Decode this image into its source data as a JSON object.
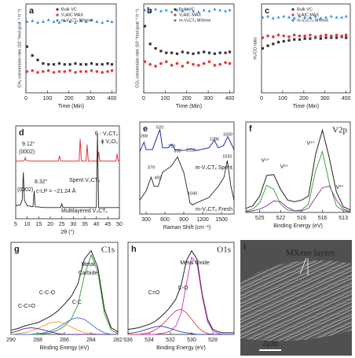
{
  "chart_data": [
    {
      "label": "a",
      "type": "scatter",
      "xlabel": "Time (Min)",
      "ylabel": "CH₄ conversion rate (10⁻³mol gcat⁻¹ h⁻¹)",
      "xlim": [
        0,
        420
      ],
      "ylim": [
        0,
        1
      ],
      "xticks": [
        0,
        100,
        200,
        300,
        400
      ],
      "x": [
        5,
        30,
        55,
        80,
        105,
        130,
        155,
        180,
        205,
        230,
        255,
        280,
        305,
        330,
        355,
        380,
        400
      ],
      "series": [
        {
          "name": "Bulk VC",
          "color": "#333333",
          "marker": "square",
          "values": [
            0.52,
            0.42,
            0.37,
            0.33,
            0.32,
            0.32,
            0.33,
            0.32,
            0.32,
            0.33,
            0.32,
            0.32,
            0.33,
            0.32,
            0.32,
            0.33,
            0.32
          ]
        },
        {
          "name": "V₂AlC MAX",
          "color": "#e03a3a",
          "marker": "circle",
          "values": [
            0.24,
            0.25,
            0.23,
            0.24,
            0.25,
            0.23,
            0.24,
            0.24,
            0.25,
            0.23,
            0.24,
            0.24,
            0.25,
            0.24,
            0.23,
            0.24,
            0.25
          ]
        },
        {
          "name": "m-V₂CTₓ MXene",
          "color": "#3a8fe0",
          "marker": "triangle",
          "values": [
            0.8,
            0.81,
            0.79,
            0.8,
            0.82,
            0.8,
            0.79,
            0.81,
            0.8,
            0.79,
            0.81,
            0.8,
            0.82,
            0.8,
            0.79,
            0.81,
            0.8
          ]
        }
      ]
    },
    {
      "label": "b",
      "type": "scatter",
      "xlabel": "Time (Min)",
      "ylabel": "CO₂ conversion rate (10⁻³mol gcat⁻¹ h⁻¹)",
      "xlim": [
        0,
        420
      ],
      "ylim": [
        0,
        1
      ],
      "xticks": [
        0,
        100,
        200,
        300,
        400
      ],
      "x": [
        5,
        30,
        55,
        80,
        105,
        130,
        155,
        180,
        205,
        230,
        255,
        280,
        305,
        330,
        355,
        380,
        400
      ],
      "series": [
        {
          "name": "Bulk VC",
          "color": "#333333",
          "marker": "square",
          "values": [
            0.75,
            0.55,
            0.5,
            0.47,
            0.45,
            0.45,
            0.44,
            0.46,
            0.45,
            0.44,
            0.45,
            0.46,
            0.45,
            0.44,
            0.45,
            0.45,
            0.46
          ]
        },
        {
          "name": "V₂AlC MAX",
          "color": "#e03a3a",
          "marker": "circle",
          "values": [
            0.35,
            0.32,
            0.3,
            0.33,
            0.35,
            0.31,
            0.33,
            0.3,
            0.34,
            0.32,
            0.31,
            0.33,
            0.35,
            0.31,
            0.32,
            0.34,
            0.33
          ]
        },
        {
          "name": "m-V₂CTₓ MXene",
          "color": "#3a8fe0",
          "marker": "triangle",
          "values": [
            0.93,
            0.92,
            0.94,
            0.92,
            0.93,
            0.91,
            0.93,
            0.92,
            0.94,
            0.92,
            0.91,
            0.93,
            0.92,
            0.94,
            0.93,
            0.92,
            0.93
          ]
        }
      ]
    },
    {
      "label": "c",
      "type": "scatter",
      "xlabel": "Time (Min)",
      "ylabel": "H₂/CO ratio",
      "xlim": [
        0,
        420
      ],
      "ylim": [
        0,
        1
      ],
      "xticks": [
        0,
        100,
        200,
        300,
        400
      ],
      "x": [
        5,
        30,
        55,
        80,
        105,
        130,
        155,
        180,
        205,
        230,
        255,
        280,
        305,
        330,
        355,
        380,
        400
      ],
      "series": [
        {
          "name": "Bulk VC",
          "color": "#333333",
          "marker": "square",
          "values": [
            0.5,
            0.53,
            0.55,
            0.57,
            0.58,
            0.59,
            0.6,
            0.6,
            0.61,
            0.61,
            0.62,
            0.61,
            0.62,
            0.62,
            0.62,
            0.63,
            0.62
          ]
        },
        {
          "name": "V₂AlC MAX",
          "color": "#e03a3a",
          "marker": "circle",
          "values": [
            0.62,
            0.64,
            0.63,
            0.65,
            0.64,
            0.63,
            0.65,
            0.64,
            0.64,
            0.65,
            0.63,
            0.64,
            0.65,
            0.64,
            0.65,
            0.64,
            0.65
          ]
        },
        {
          "name": "m-V₂CTₓ MXene",
          "color": "#3a8fe0",
          "marker": "triangle",
          "values": [
            0.85,
            0.86,
            0.84,
            0.85,
            0.86,
            0.85,
            0.84,
            0.86,
            0.85,
            0.85,
            0.86,
            0.84,
            0.85,
            0.86,
            0.85,
            0.85,
            0.86
          ]
        }
      ]
    },
    {
      "label": "d",
      "type": "line",
      "xlabel": "2θ (°)",
      "xlim": [
        5,
        50
      ],
      "ylim": [
        0,
        1
      ],
      "xticks": [
        5,
        10,
        15,
        20,
        25,
        30,
        35,
        40,
        45,
        50
      ],
      "series": [
        {
          "color": "#e0383a",
          "x": [
            5,
            8,
            8.8,
            9.12,
            9.5,
            11,
            15,
            20,
            23.5,
            24,
            24.5,
            28,
            32.5,
            33,
            33.5,
            35.5,
            36,
            36.5,
            40.5,
            41,
            41.5,
            45,
            48.5,
            49,
            49.5,
            50
          ],
          "values": [
            0.62,
            0.62,
            0.63,
            0.66,
            0.63,
            0.62,
            0.62,
            0.62,
            0.62,
            0.68,
            0.62,
            0.62,
            0.62,
            0.86,
            0.62,
            0.62,
            0.8,
            0.62,
            0.62,
            0.72,
            0.62,
            0.62,
            0.62,
            0.7,
            0.62,
            0.62
          ]
        },
        {
          "color": "#222222",
          "x": [
            5,
            7,
            7.8,
            8.32,
            8.8,
            10,
            12.5,
            13,
            13.5,
            18,
            24.5,
            25,
            25.5,
            35,
            40,
            40.5,
            41,
            45,
            50
          ],
          "values": [
            0.14,
            0.15,
            0.2,
            0.5,
            0.2,
            0.14,
            0.13,
            0.3,
            0.13,
            0.12,
            0.12,
            0.16,
            0.12,
            0.12,
            0.12,
            0.92,
            0.12,
            0.12,
            0.12
          ]
        }
      ],
      "annotations": [
        {
          "text": "θ - V₂CTₓ",
          "color": "#222222"
        },
        {
          "text": "ϕ  V₂O₃",
          "color": "#222222"
        },
        {
          "text": "9.12°",
          "color": "#222222"
        },
        {
          "text": "(0002)",
          "color": "#222222"
        },
        {
          "text": "Spent V₂CTₓ",
          "color": "#e0383a"
        },
        {
          "text": "8.32°",
          "color": "#222222"
        },
        {
          "text": "(0002)",
          "color": "#222222"
        },
        {
          "text": "c-LP = ~21.24 Å",
          "color": "#222222"
        },
        {
          "text": "Multilayered V₂CTₓ",
          "color": "#1f4fc8"
        }
      ]
    },
    {
      "label": "e",
      "type": "line",
      "xlabel": "Raman Shift (cm⁻¹)",
      "xlim": [
        200,
        1700
      ],
      "ylim": [
        0,
        1
      ],
      "xticks": [
        300,
        600,
        900,
        1200,
        1500
      ],
      "series": [
        {
          "color": "#1f2fa8",
          "x": [
            200,
            268,
            300,
            400,
            520,
            560,
            650,
            710,
            760,
            900,
            1010,
            1100,
            1300,
            1386,
            1450,
            1530,
            1600,
            1700
          ],
          "values": [
            0.68,
            0.78,
            0.7,
            0.7,
            0.92,
            0.72,
            0.72,
            0.76,
            0.7,
            0.69,
            0.71,
            0.69,
            0.72,
            0.8,
            0.72,
            0.74,
            0.84,
            0.7
          ],
          "peak_labels": [
            268,
            520,
            710,
            1010,
            1386,
            1600
          ]
        },
        {
          "color": "#222222",
          "x": [
            200,
            300,
            379,
            430,
            492,
            560,
            700,
            800,
            900,
            1000,
            1040,
            1100,
            1300,
            1450,
            1540,
            1592,
            1650,
            1700
          ],
          "values": [
            0.15,
            0.25,
            0.4,
            0.3,
            0.3,
            0.45,
            0.52,
            0.62,
            0.45,
            0.12,
            0.1,
            0.12,
            0.18,
            0.3,
            0.4,
            0.58,
            0.3,
            0.15
          ],
          "peak_labels": [
            379,
            492,
            800,
            1040,
            1592
          ]
        }
      ],
      "annotations": [
        {
          "text": "m-V₂CTₓ Spent",
          "color": "#1f2fa8"
        },
        {
          "text": "m-V₂CTₓ Fresh",
          "color": "#222222"
        }
      ]
    },
    {
      "label": "f",
      "type": "line",
      "xlabel": "Binding Energy (eV)",
      "xlim": [
        527,
        512
      ],
      "ylim": [
        0,
        1.1
      ],
      "xticks": [
        525,
        522,
        519,
        516,
        513
      ],
      "x": [
        527,
        526,
        525,
        524,
        523,
        522,
        521,
        520,
        519,
        518,
        517,
        516,
        515,
        514,
        513,
        512
      ],
      "series": [
        {
          "color": "#222222",
          "values": [
            0.05,
            0.08,
            0.2,
            0.45,
            0.46,
            0.28,
            0.15,
            0.13,
            0.15,
            0.2,
            0.7,
            1.0,
            0.66,
            0.25,
            0.07,
            0.03
          ]
        },
        {
          "color": "#2a9a2a",
          "values": [
            0.02,
            0.04,
            0.12,
            0.33,
            0.28,
            0.1,
            0.03,
            0.02,
            0.03,
            0.1,
            0.5,
            0.74,
            0.35,
            0.08,
            0.02,
            0.01
          ]
        },
        {
          "color": "#8a2aa8",
          "values": [
            0.01,
            0.02,
            0.04,
            0.08,
            0.14,
            0.13,
            0.06,
            0.02,
            0.02,
            0.05,
            0.18,
            0.3,
            0.32,
            0.15,
            0.04,
            0.01
          ]
        }
      ],
      "annotations": [
        {
          "text": "V2p",
          "color": "#222222"
        },
        {
          "text": "V⁴⁺",
          "color": "#2a9a2a"
        },
        {
          "text": "V³⁺",
          "color": "#8a2aa8"
        },
        {
          "text": "V⁴⁺",
          "color": "#2a9a2a"
        },
        {
          "text": "V³⁺",
          "color": "#8a2aa8"
        }
      ]
    },
    {
      "label": "g",
      "type": "line",
      "xlabel": "Binding Energy (eV)",
      "xlim": [
        290,
        282
      ],
      "ylim": [
        0,
        1.1
      ],
      "xticks": [
        290,
        288,
        286,
        284,
        282
      ],
      "x": [
        290,
        289.5,
        289,
        288.5,
        288,
        287.5,
        287,
        286.5,
        286,
        285.5,
        285,
        284.5,
        284,
        283.5,
        283,
        282.5,
        282
      ],
      "series": [
        {
          "color": "#222222",
          "values": [
            0.05,
            0.07,
            0.1,
            0.12,
            0.14,
            0.18,
            0.22,
            0.28,
            0.36,
            0.45,
            0.6,
            0.9,
            1.0,
            0.8,
            0.3,
            0.08,
            0.03
          ]
        },
        {
          "color": "#2a9a2a",
          "values": [
            0,
            0,
            0,
            0,
            0,
            0.01,
            0.02,
            0.05,
            0.1,
            0.18,
            0.35,
            0.7,
            0.95,
            0.75,
            0.25,
            0.05,
            0.01
          ]
        },
        {
          "color": "#3a6fe0",
          "values": [
            0,
            0,
            0,
            0,
            0.01,
            0.02,
            0.04,
            0.08,
            0.13,
            0.18,
            0.2,
            0.18,
            0.12,
            0.06,
            0.02,
            0,
            0
          ]
        },
        {
          "color": "#e8a020",
          "values": [
            0,
            0.01,
            0.02,
            0.04,
            0.07,
            0.11,
            0.14,
            0.15,
            0.13,
            0.09,
            0.05,
            0.02,
            0.01,
            0,
            0,
            0,
            0
          ]
        },
        {
          "color": "#5a2a9a",
          "values": [
            0.02,
            0.04,
            0.07,
            0.08,
            0.07,
            0.05,
            0.03,
            0.01,
            0,
            0,
            0,
            0,
            0,
            0,
            0,
            0,
            0
          ]
        }
      ],
      "annotations": [
        {
          "text": "C1s",
          "color": "#222222"
        },
        {
          "text": "Metal",
          "color": "#2a9a2a"
        },
        {
          "text": "Carbide",
          "color": "#2a9a2a"
        },
        {
          "text": "C-C-O",
          "color": "#e8a020"
        },
        {
          "text": "C-C",
          "color": "#3a6fe0"
        },
        {
          "text": "C-C=O",
          "color": "#5a2a9a"
        }
      ]
    },
    {
      "label": "h",
      "type": "line",
      "xlabel": "Binding Energy (eV)",
      "xlim": [
        536,
        526
      ],
      "ylim": [
        0,
        1.1
      ],
      "xticks": [
        536,
        534,
        532,
        530,
        528
      ],
      "x": [
        536,
        535.5,
        535,
        534.5,
        534,
        533.5,
        533,
        532.5,
        532,
        531.5,
        531,
        530.5,
        530,
        529.5,
        529,
        528.5,
        528,
        527.5,
        527,
        526.5,
        526
      ],
      "series": [
        {
          "color": "#222222",
          "values": [
            0.06,
            0.07,
            0.08,
            0.1,
            0.12,
            0.15,
            0.2,
            0.26,
            0.33,
            0.42,
            0.58,
            0.88,
            1.0,
            0.9,
            0.48,
            0.18,
            0.06,
            0.03,
            0.02,
            0.02,
            0.02
          ]
        },
        {
          "color": "#d02ad0",
          "values": [
            0,
            0,
            0,
            0,
            0,
            0,
            0.01,
            0.02,
            0.04,
            0.1,
            0.25,
            0.6,
            0.92,
            0.85,
            0.45,
            0.15,
            0.04,
            0.01,
            0,
            0,
            0
          ]
        },
        {
          "color": "#e03a3a",
          "values": [
            0,
            0,
            0,
            0.01,
            0.02,
            0.05,
            0.09,
            0.15,
            0.22,
            0.28,
            0.3,
            0.26,
            0.18,
            0.1,
            0.04,
            0.01,
            0,
            0,
            0,
            0,
            0
          ]
        },
        {
          "color": "#2a3ab0",
          "values": [
            0.01,
            0.02,
            0.03,
            0.05,
            0.07,
            0.09,
            0.1,
            0.09,
            0.07,
            0.05,
            0.03,
            0.02,
            0.01,
            0,
            0,
            0,
            0,
            0,
            0,
            0,
            0
          ]
        }
      ],
      "annotations": [
        {
          "text": "O1s",
          "color": "#222222"
        },
        {
          "text": "Metal Oxide",
          "color": "#d02ad0"
        },
        {
          "text": "C-O",
          "color": "#e03a3a"
        },
        {
          "text": "C=O",
          "color": "#2a3ab0"
        }
      ]
    },
    {
      "label": "i",
      "type": "image",
      "annotations": [
        {
          "text": "MXene layers",
          "color": "#ffffff"
        },
        {
          "text": "2μm",
          "color": "#ffffff"
        }
      ]
    }
  ]
}
